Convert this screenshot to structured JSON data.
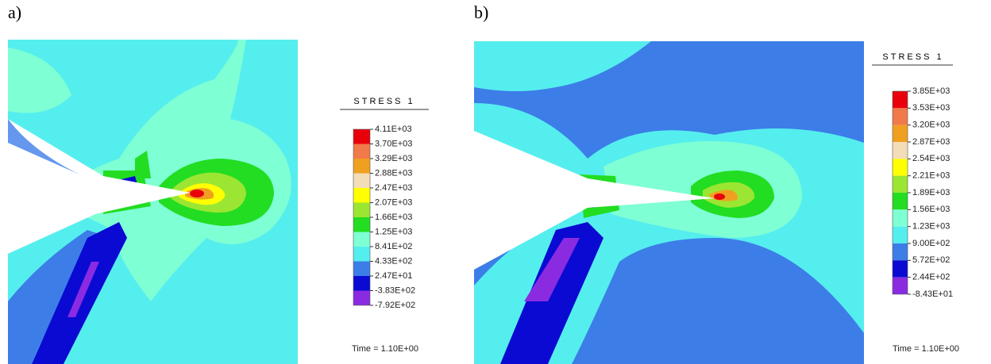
{
  "panels": [
    {
      "label": "a)",
      "legend_title": "STRESS 1",
      "legend_labels": [
        "4.11E+03",
        "3.70E+03",
        "3.29E+03",
        "2.88E+03",
        "2.47E+03",
        "2.07E+03",
        "1.66E+03",
        "1.25E+03",
        "8.41E+02",
        "4.33E+02",
        "2.47E+01",
        "-3.83E+02",
        "-7.92E+02"
      ],
      "time": "Time = 1.10E+00"
    },
    {
      "label": "b)",
      "legend_title": "STRESS 1",
      "legend_labels": [
        "3.85E+03",
        "3.53E+03",
        "3.20E+03",
        "2.87E+03",
        "2.54E+03",
        "2.21E+03",
        "1.89E+03",
        "1.56E+03",
        "1.23E+03",
        "9.00E+02",
        "5.72E+02",
        "2.44E+02",
        "-8.43E+01"
      ],
      "time": "Time = 1.10E+00"
    }
  ],
  "legend_colors": [
    "#e8000b",
    "#f07a4a",
    "#f0a020",
    "#f3dcb8",
    "#ffff00",
    "#9be632",
    "#22dd22",
    "#7fffd4",
    "#55eeee",
    "#3d7de8",
    "#0a0ad2",
    "#8a2be2"
  ]
}
